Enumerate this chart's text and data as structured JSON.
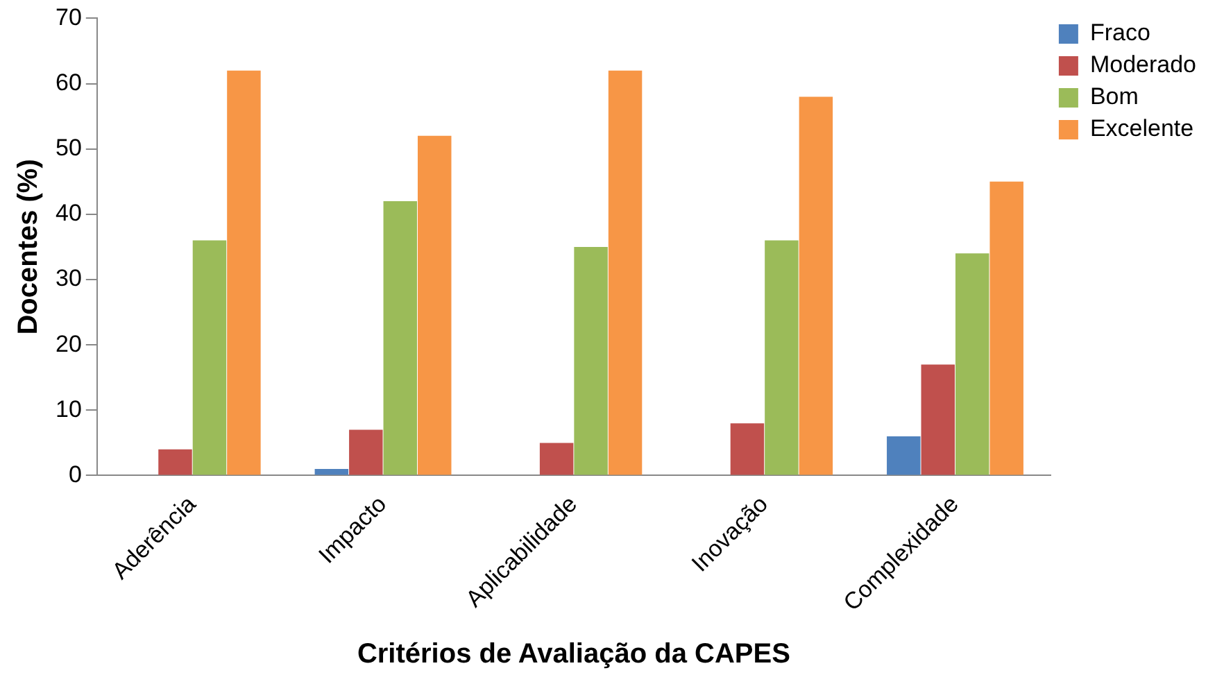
{
  "chart_data": {
    "type": "bar",
    "xlabel": "Critérios de Avaliação da CAPES",
    "ylabel": "Docentes (%)",
    "categories": [
      "Aderência",
      "Impacto",
      "Aplicabilidade",
      "Inovação",
      "Complexidade"
    ],
    "series": [
      {
        "name": "Fraco",
        "color": "#4f81bd",
        "values": [
          0,
          1,
          0,
          0,
          6
        ]
      },
      {
        "name": "Moderado",
        "color": "#c0504d",
        "values": [
          4,
          7,
          5,
          8,
          17
        ]
      },
      {
        "name": "Bom",
        "color": "#9bbb59",
        "values": [
          36,
          42,
          35,
          36,
          34
        ]
      },
      {
        "name": "Excelente",
        "color": "#f79646",
        "values": [
          62,
          52,
          62,
          58,
          45
        ]
      }
    ],
    "ylim": [
      0,
      70
    ],
    "yticks": [
      0,
      10,
      20,
      30,
      40,
      50,
      60,
      70
    ],
    "grid": false,
    "legend": "top right"
  }
}
